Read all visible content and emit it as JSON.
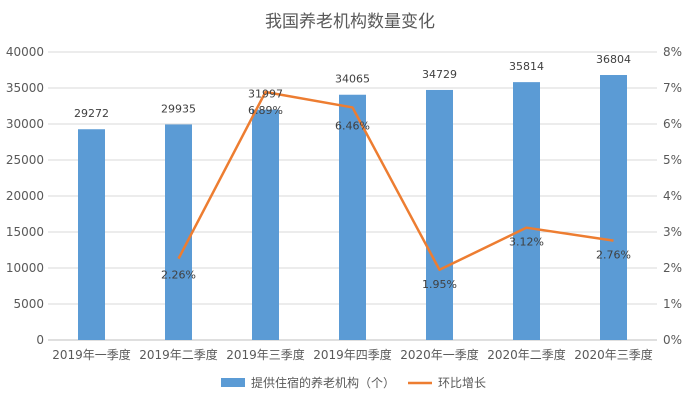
{
  "chart_data": {
    "type": "bar",
    "title": "我国养老机构数量变化",
    "categories": [
      "2019年一季度",
      "2019年二季度",
      "2019年三季度",
      "2019年四季度",
      "2020年一季度",
      "2020年二季度",
      "2020年三季度"
    ],
    "series": [
      {
        "name": "提供住宿的养老机构（个）",
        "type": "bar",
        "axis": "left",
        "color": "#5B9BD5",
        "values": [
          29272,
          29935,
          31997,
          34065,
          34729,
          35814,
          36804
        ],
        "labels": [
          "29272",
          "29935",
          "31997",
          "34065",
          "34729",
          "35814",
          "36804"
        ]
      },
      {
        "name": "环比增长",
        "type": "line",
        "axis": "right",
        "color": "#ED7D31",
        "values": [
          null,
          2.26,
          6.89,
          6.46,
          1.95,
          3.12,
          2.76
        ],
        "labels": [
          "",
          "2.26%",
          "6.89%",
          "6.46%",
          "1.95%",
          "3.12%",
          "2.76%"
        ]
      }
    ],
    "y_left": {
      "range": [
        0,
        40000
      ],
      "ticks": [
        0,
        5000,
        10000,
        15000,
        20000,
        25000,
        30000,
        35000,
        40000
      ],
      "tick_labels": [
        "0",
        "5000",
        "10000",
        "15000",
        "20000",
        "25000",
        "30000",
        "35000",
        "40000"
      ]
    },
    "y_right": {
      "range": [
        0,
        8
      ],
      "ticks": [
        0,
        1,
        2,
        3,
        4,
        5,
        6,
        7,
        8
      ],
      "tick_labels": [
        "0%",
        "1%",
        "2%",
        "3%",
        "4%",
        "5%",
        "6%",
        "7%",
        "8%"
      ]
    },
    "grid": true,
    "legend": "bottom"
  }
}
